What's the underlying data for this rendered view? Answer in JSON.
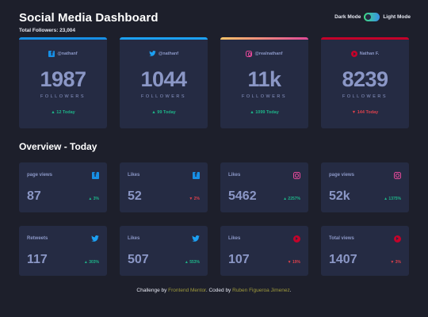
{
  "header": {
    "title": "Social Media Dashboard",
    "total_followers": "Total Followers: 23,004",
    "toggle_dark_label": "Dark Mode",
    "toggle_light_label": "Light Mode"
  },
  "colors": {
    "facebook": "#178fe5",
    "twitter": "#1ca0f2",
    "instagram_gradient": [
      "#fdc468",
      "#df4996"
    ],
    "youtube": "#c4032a",
    "up": "#1eb589",
    "down": "#dc414c"
  },
  "cards": [
    {
      "icon": "facebook-icon",
      "handle": "@nathanf",
      "count": "1987",
      "label": "FOLLOWERS",
      "today": "▲ 12 Today",
      "trend": "up"
    },
    {
      "icon": "twitter-icon",
      "handle": "@nathanf",
      "count": "1044",
      "label": "FOLLOWERS",
      "today": "▲ 99 Today",
      "trend": "up"
    },
    {
      "icon": "instagram-icon",
      "handle": "@realnathanf",
      "count": "11k",
      "label": "FOLLOWERS",
      "today": "▲ 1099 Today",
      "trend": "up"
    },
    {
      "icon": "youtube-icon",
      "handle": "Nathan F.",
      "count": "8239",
      "label": "FOLLOWERS",
      "today": "▼ 144 Today",
      "trend": "down"
    }
  ],
  "overview": {
    "title": "Overview - Today",
    "items": [
      {
        "name": "page views",
        "icon": "facebook-icon",
        "value": "87",
        "pct": "▲ 3%",
        "trend": "up"
      },
      {
        "name": "Likes",
        "icon": "facebook-icon",
        "value": "52",
        "pct": "▼ 2%",
        "trend": "down"
      },
      {
        "name": "Likes",
        "icon": "instagram-icon",
        "value": "5462",
        "pct": "▲ 2257%",
        "trend": "up"
      },
      {
        "name": "page views",
        "icon": "instagram-icon",
        "value": "52k",
        "pct": "▲ 1375%",
        "trend": "up"
      },
      {
        "name": "Retweets",
        "icon": "twitter-icon",
        "value": "117",
        "pct": "▲ 303%",
        "trend": "up"
      },
      {
        "name": "Likes",
        "icon": "twitter-icon",
        "value": "507",
        "pct": "▲ 553%",
        "trend": "up"
      },
      {
        "name": "Likes",
        "icon": "youtube-icon",
        "value": "107",
        "pct": "▼ 19%",
        "trend": "down"
      },
      {
        "name": "Total views",
        "icon": "youtube-icon",
        "value": "1407",
        "pct": "▼ 3%",
        "trend": "down"
      }
    ]
  },
  "footer": {
    "prefix": "Challenge by ",
    "link1": "Frontend Mentor",
    "middle": ". Coded by ",
    "link2": "Ruben Figueroa Jimenez",
    "suffix": "."
  }
}
